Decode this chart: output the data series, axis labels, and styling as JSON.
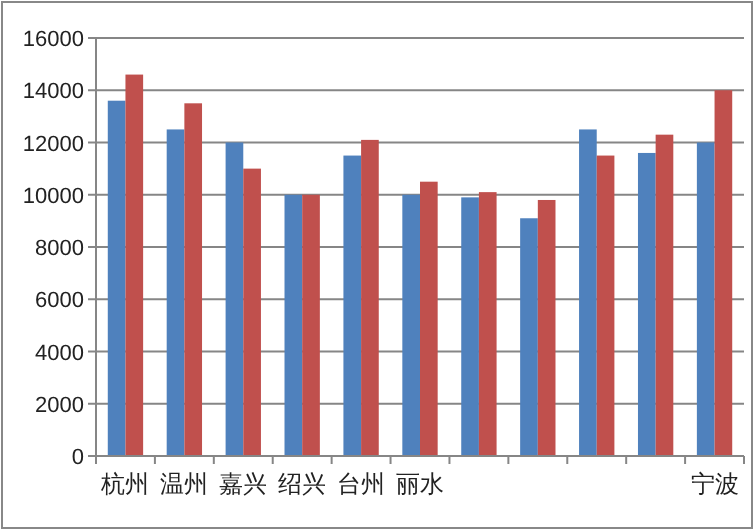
{
  "chart_data": {
    "type": "bar",
    "categories": [
      "杭州",
      "温州",
      "嘉兴",
      "绍兴",
      "台州",
      "丽水",
      null,
      null,
      null,
      null,
      "宁波"
    ],
    "series": [
      {
        "color": "#4f81bd",
        "values": [
          13600,
          12500,
          12000,
          10000,
          11500,
          10000,
          9900,
          9100,
          12500,
          11600,
          12000
        ]
      },
      {
        "color": "#c0504d",
        "values": [
          14600,
          13500,
          11000,
          10000,
          12100,
          10500,
          10100,
          9800,
          11500,
          12300,
          14000
        ]
      }
    ],
    "ylim": [
      0,
      16000
    ],
    "yticks": [
      0,
      2000,
      4000,
      6000,
      8000,
      10000,
      12000,
      14000,
      16000
    ],
    "grid": "y"
  }
}
